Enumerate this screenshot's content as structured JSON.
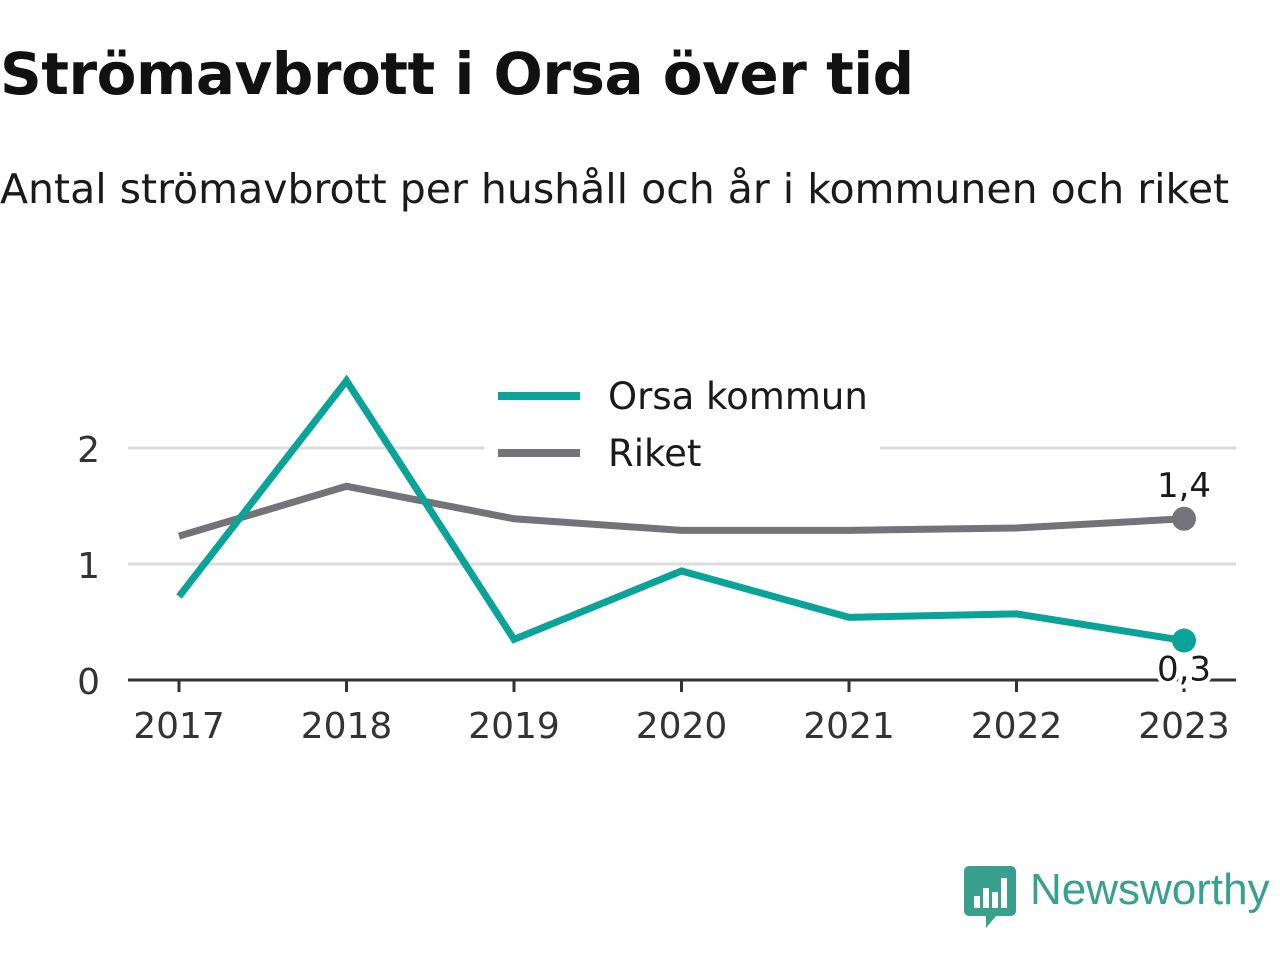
{
  "title": "Strömavbrott i Orsa över tid",
  "subtitle": "Antal strömavbrott per hushåll och år i kommunen och riket",
  "brand": {
    "name": "Newsworthy",
    "icon": "newsworthy-logo-icon"
  },
  "colors": {
    "orsa": "#0aa397",
    "riket": "#74737a",
    "grid": "#dcdcdc",
    "axis": "#333333",
    "brand": "#3aa08e"
  },
  "chart_data": {
    "type": "line",
    "x": [
      "2017",
      "2018",
      "2019",
      "2020",
      "2021",
      "2022",
      "2023"
    ],
    "series": [
      {
        "name": "Orsa kommun",
        "color": "#0aa397",
        "values": [
          0.72,
          2.58,
          0.35,
          0.94,
          0.54,
          0.57,
          0.34
        ],
        "end_label": "0,3"
      },
      {
        "name": "Riket",
        "color": "#74737a",
        "values": [
          1.24,
          1.67,
          1.39,
          1.29,
          1.29,
          1.31,
          1.39
        ],
        "end_label": "1,4"
      }
    ],
    "yticks": [
      0,
      1,
      2
    ],
    "ytick_labels": [
      "0",
      "1",
      "2"
    ],
    "ylim": [
      0,
      2.6
    ],
    "grid": true,
    "legend_position": "top-center"
  }
}
